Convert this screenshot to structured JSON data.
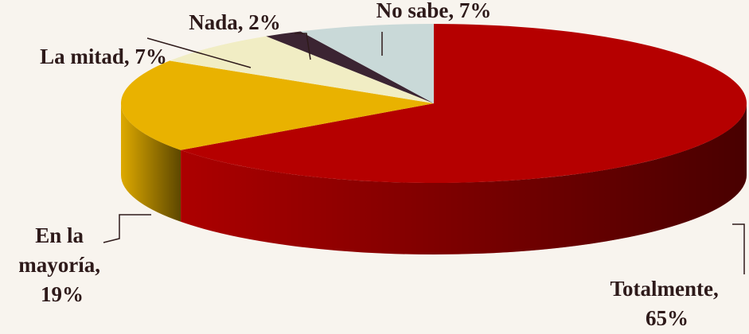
{
  "chart_data": {
    "type": "pie",
    "value_labels": [
      "Totalmente, 65%",
      "En la mayoría, 19%",
      "La mitad, 7%",
      "Nada, 2%",
      "No sabe, 7%"
    ],
    "values": [
      65,
      19,
      7,
      2,
      7
    ],
    "colors": [
      "#b50000",
      "#e9b200",
      "#f1edc4",
      "#3b2432",
      "#c9d9d8"
    ]
  }
}
